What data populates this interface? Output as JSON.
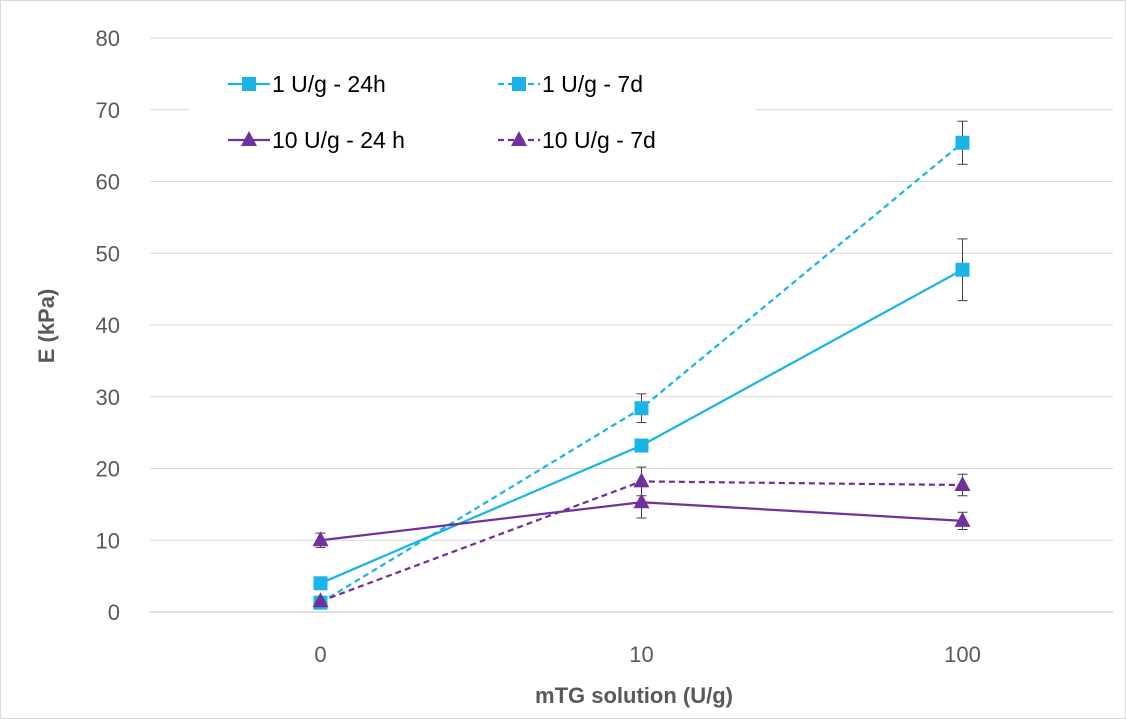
{
  "chart_data": {
    "type": "line",
    "xlabel": "mTG solution (U/g)",
    "ylabel": "E (kPa)",
    "categories": [
      "0",
      "10",
      "100"
    ],
    "y_ticks": [
      "0",
      "10",
      "20",
      "30",
      "40",
      "50",
      "60",
      "70",
      "80"
    ],
    "ylim": [
      0,
      80
    ],
    "grid": "horizontal",
    "legend_position": "top-left",
    "series": [
      {
        "name": "1 U/g - 24h",
        "color": "#1CB4E6",
        "line_style": "solid",
        "marker": "square",
        "values": [
          4.0,
          23.2,
          47.7
        ],
        "errors": [
          0.5,
          0.8,
          4.3
        ]
      },
      {
        "name": "1 U/g - 7d",
        "color": "#1CB4E6",
        "line_style": "dashed",
        "marker": "square",
        "values": [
          1.3,
          28.4,
          65.4
        ],
        "errors": [
          0.3,
          2.0,
          3.0
        ]
      },
      {
        "name": "10 U/g - 24 h",
        "color": "#7030A0",
        "line_style": "solid",
        "marker": "triangle",
        "values": [
          10.0,
          15.3,
          12.7
        ],
        "errors": [
          1.0,
          2.2,
          1.2
        ]
      },
      {
        "name": "10 U/g - 7d",
        "color": "#7030A0",
        "line_style": "dashed",
        "marker": "triangle",
        "values": [
          1.5,
          18.2,
          17.7
        ],
        "errors": [
          0.3,
          2.0,
          1.5
        ]
      }
    ]
  }
}
